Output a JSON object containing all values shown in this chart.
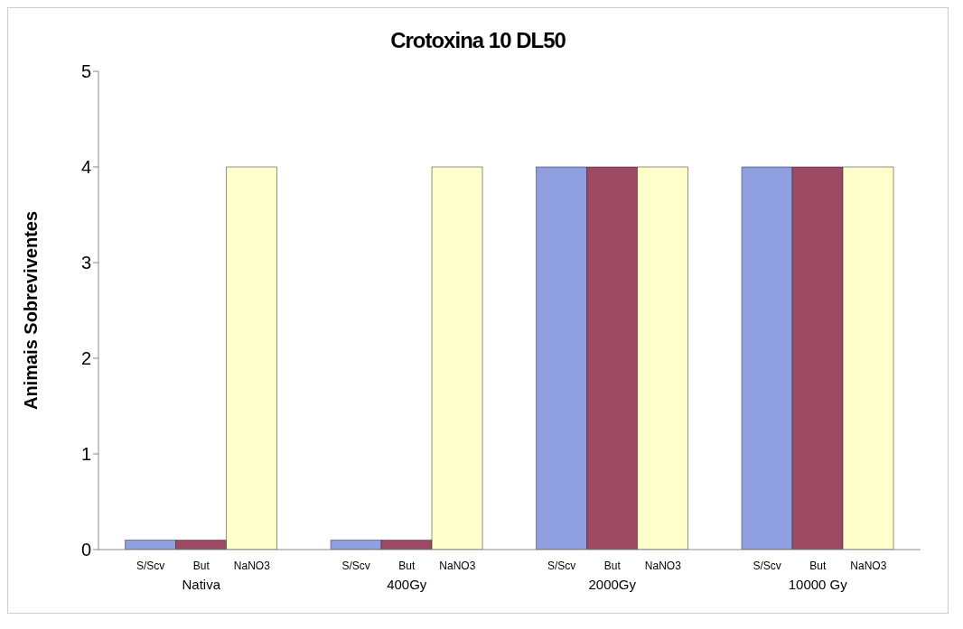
{
  "chart_data": {
    "type": "bar",
    "title": "Crotoxina 10 DL50",
    "ylabel": "Animais Sobreviventes",
    "categories": [
      "Nativa",
      "400Gy",
      "2000Gy",
      "10000 Gy"
    ],
    "series": [
      {
        "name": "S/Scv",
        "color": "#8f9fe0",
        "values": [
          0.1,
          0.1,
          4,
          4
        ]
      },
      {
        "name": "But",
        "color": "#9c4a64",
        "values": [
          0.1,
          0.1,
          4,
          4
        ]
      },
      {
        "name": "NaNO3",
        "color": "#ffffcc",
        "values": [
          4,
          4,
          4,
          4
        ]
      }
    ],
    "ylim": [
      0,
      5
    ],
    "yticks": [
      0,
      1,
      2,
      3,
      4,
      5
    ]
  }
}
